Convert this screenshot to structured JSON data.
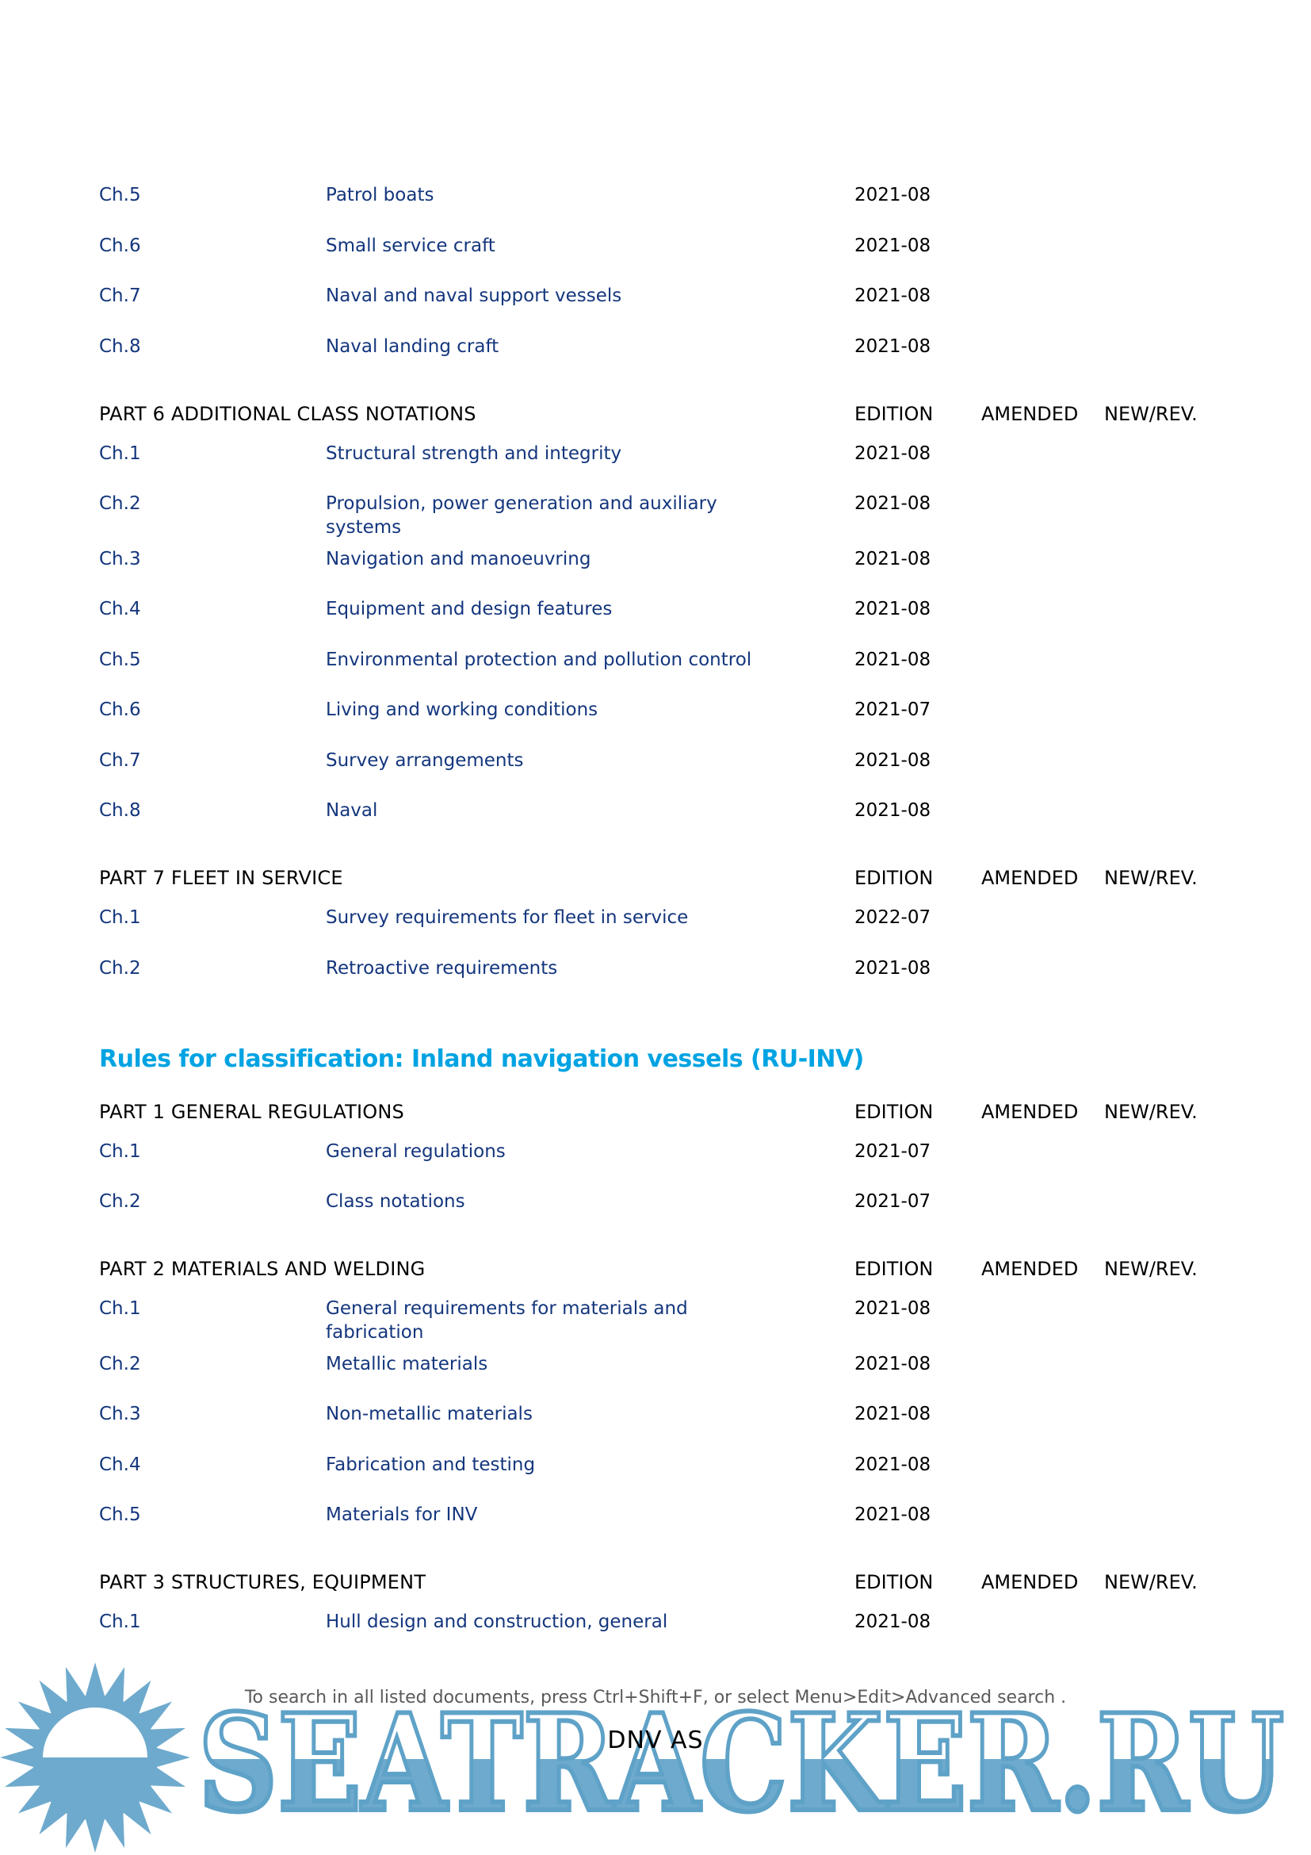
{
  "heading": "Rules for classification: Inland navigation vessels (RU-INV)",
  "column_headers": {
    "edition": "EDITION",
    "amended": "AMENDED",
    "newrev": "NEW/REV."
  },
  "blocks": [
    {
      "type": "rows",
      "rows": [
        {
          "ch": "Ch.5",
          "title": "Patrol boats",
          "edition": "2021-08"
        },
        {
          "ch": "Ch.6",
          "title": "Small service craft",
          "edition": "2021-08"
        },
        {
          "ch": "Ch.7",
          "title": "Naval and naval support vessels",
          "edition": "2021-08"
        },
        {
          "ch": "Ch.8",
          "title": "Naval landing craft",
          "edition": "2021-08"
        }
      ]
    },
    {
      "type": "section",
      "title": "PART 6 ADDITIONAL CLASS NOTATIONS",
      "rows": [
        {
          "ch": "Ch.1",
          "title": "Structural strength and integrity",
          "edition": "2021-08"
        },
        {
          "ch": "Ch.2",
          "title": "Propulsion, power generation and auxiliary\nsystems",
          "edition": "2021-08"
        },
        {
          "ch": "Ch.3",
          "title": "Navigation and manoeuvring",
          "edition": "2021-08"
        },
        {
          "ch": "Ch.4",
          "title": "Equipment and design features",
          "edition": "2021-08"
        },
        {
          "ch": "Ch.5",
          "title": "Environmental protection and pollution control",
          "edition": "2021-08"
        },
        {
          "ch": "Ch.6",
          "title": "Living and working conditions",
          "edition": "2021-07"
        },
        {
          "ch": "Ch.7",
          "title": "Survey arrangements",
          "edition": "2021-08"
        },
        {
          "ch": "Ch.8",
          "title": "Naval",
          "edition": "2021-08"
        }
      ]
    },
    {
      "type": "section",
      "title": "PART 7 FLEET IN SERVICE",
      "rows": [
        {
          "ch": "Ch.1",
          "title": "Survey requirements for fleet in service",
          "edition": "2022-07"
        },
        {
          "ch": "Ch.2",
          "title": "Retroactive requirements",
          "edition": "2021-08"
        }
      ]
    },
    {
      "type": "heading"
    },
    {
      "type": "section",
      "title": "PART 1 GENERAL REGULATIONS",
      "rows": [
        {
          "ch": "Ch.1",
          "title": "General regulations",
          "edition": "2021-07"
        },
        {
          "ch": "Ch.2",
          "title": "Class notations",
          "edition": "2021-07"
        }
      ]
    },
    {
      "type": "section",
      "title": "PART 2 MATERIALS AND WELDING",
      "rows": [
        {
          "ch": "Ch.1",
          "title": "General requirements for materials and\nfabrication",
          "edition": "2021-08"
        },
        {
          "ch": "Ch.2",
          "title": "Metallic materials",
          "edition": "2021-08"
        },
        {
          "ch": "Ch.3",
          "title": "Non-metallic materials",
          "edition": "2021-08"
        },
        {
          "ch": "Ch.4",
          "title": "Fabrication and testing",
          "edition": "2021-08"
        },
        {
          "ch": "Ch.5",
          "title": "Materials for INV",
          "edition": "2021-08"
        }
      ]
    },
    {
      "type": "section",
      "title": "PART 3 STRUCTURES, EQUIPMENT",
      "rows": [
        {
          "ch": "Ch.1",
          "title": "Hull design and construction, general",
          "edition": "2021-08"
        }
      ]
    }
  ],
  "footer": {
    "hint": "To search in all listed documents, press Ctrl+Shift+F, or select Menu>Edit>Advanced search .",
    "company": "DNV AS"
  },
  "watermark": {
    "text": "SEATRACKER.RU",
    "logo": "sun-logo"
  },
  "colors": {
    "link_blue": "#14367d",
    "heading_cyan": "#00a3e2",
    "text_black": "#000000",
    "footer_gray": "#595959",
    "watermark_blue": "#6eaacd",
    "watermark_stroke": "#5fa2c8"
  }
}
